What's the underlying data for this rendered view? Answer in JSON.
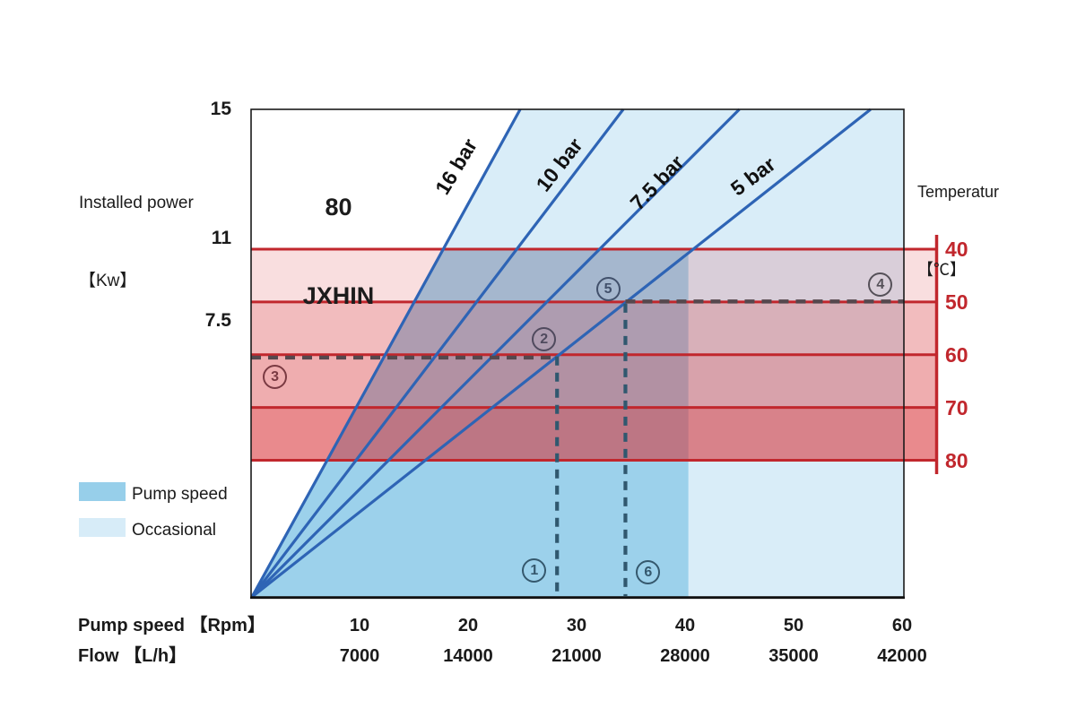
{
  "title": {
    "line1": "80",
    "line2": "JXHIN"
  },
  "left_axis": {
    "label_line1": "Installed power",
    "label_line2": "【Kw】",
    "ticks": [
      "15",
      "11",
      "7.5"
    ]
  },
  "right_axis": {
    "label_line1": "Temperatur",
    "label_line2": "【℃】",
    "ticks": [
      "40",
      "50",
      "60",
      "70",
      "80"
    ]
  },
  "bottom_axis": {
    "row1_label": "Pump speed 【Rpm】",
    "row1_ticks": [
      "10",
      "20",
      "30",
      "40",
      "50",
      "60"
    ],
    "row2_label": "Flow 【L/h】",
    "row2_ticks": [
      "7000",
      "14000",
      "21000",
      "28000",
      "35000",
      "42000"
    ]
  },
  "legend": {
    "items": [
      {
        "label": "Pump speed",
        "color": "#97cfea"
      },
      {
        "label": "Occasional",
        "color": "#d7ecf8"
      }
    ]
  },
  "chart_data": {
    "type": "line",
    "title": "80 JXHIN",
    "xlabel": "Pump speed 【Rpm】",
    "x2label": "Flow 【L/h】",
    "ylabel": "Installed power 【Kw】",
    "y2label": "Temperatur 【℃】",
    "x_range_rpm": [
      0,
      60.2
    ],
    "y_range_kw": [
      0,
      15
    ],
    "x_ticks_rpm": [
      10,
      20,
      30,
      40,
      50,
      60
    ],
    "x_ticks_flow_lh": [
      7000,
      14000,
      21000,
      28000,
      35000,
      42000
    ],
    "y_ticks_power_kw": [
      15,
      11,
      7.5
    ],
    "y2_ticks_temp_c": [
      40,
      50,
      60,
      70,
      80
    ],
    "flow_per_rpm": 700,
    "pressure_lines": [
      {
        "name": "16 bar",
        "from": [
          0,
          0
        ],
        "to": [
          24.8,
          15
        ]
      },
      {
        "name": "10 bar",
        "from": [
          0,
          0
        ],
        "to": [
          34.3,
          15
        ]
      },
      {
        "name": "7.5 bar",
        "from": [
          0,
          0
        ],
        "to": [
          45.0,
          15
        ]
      },
      {
        "name": "5 bar",
        "from": [
          0,
          0
        ],
        "to": [
          57.1,
          15
        ]
      }
    ],
    "regions": [
      {
        "name": "Occasional",
        "bound_left_line": "16 bar",
        "top_power": 15,
        "right_speed": 60.2,
        "color": "#d9edf8"
      },
      {
        "name": "Pump speed",
        "bound_left_line": "16 bar",
        "top_temp": 40,
        "right_speed": 40.3,
        "color": "#9cd1eb"
      }
    ],
    "temperature_bands": [
      {
        "from": 40,
        "to": 50,
        "opacity": 0.157
      },
      {
        "from": 50,
        "to": 60,
        "opacity": 0.319
      },
      {
        "from": 60,
        "to": 70,
        "opacity": 0.39
      },
      {
        "from": 70,
        "to": 80,
        "opacity": 0.557
      }
    ],
    "markers": [
      {
        "label": "1",
        "speed": 26.1,
        "power": 0.8
      },
      {
        "label": "2",
        "speed": 27.0,
        "power": 7.94
      },
      {
        "label": "3",
        "speed": 2.2,
        "power": 6.76
      },
      {
        "label": "4",
        "speed": 58.0,
        "power": 9.6
      },
      {
        "label": "5",
        "speed": 32.9,
        "power": 9.46
      },
      {
        "label": "6",
        "speed": 36.6,
        "power": 0.77
      }
    ],
    "dashed_guides": [
      {
        "orient": "h",
        "temp": 60,
        "from_speed": 0,
        "to_speed": 28.2
      },
      {
        "orient": "v",
        "speed": 28.2,
        "from_temp": 60
      },
      {
        "orient": "h",
        "temp": 50,
        "from_speed": 34.5,
        "to_speed": 60.2
      },
      {
        "orient": "v",
        "speed": 34.5,
        "from_temp": 50
      }
    ],
    "colors": {
      "pressure_line": "#2e64b5",
      "temperature_line": "#c1272d",
      "temperature_band_base": "#d72d32",
      "pump_speed_fill": "#9cd1eb",
      "occasional_fill": "#d9edf8",
      "guide_dash_blue": "#30586f",
      "guide_dash_dark": "#55484e",
      "marker_circle": "#4d5d6b",
      "plot_border": "#1a1a1a",
      "text": "#1a1a1a"
    }
  }
}
